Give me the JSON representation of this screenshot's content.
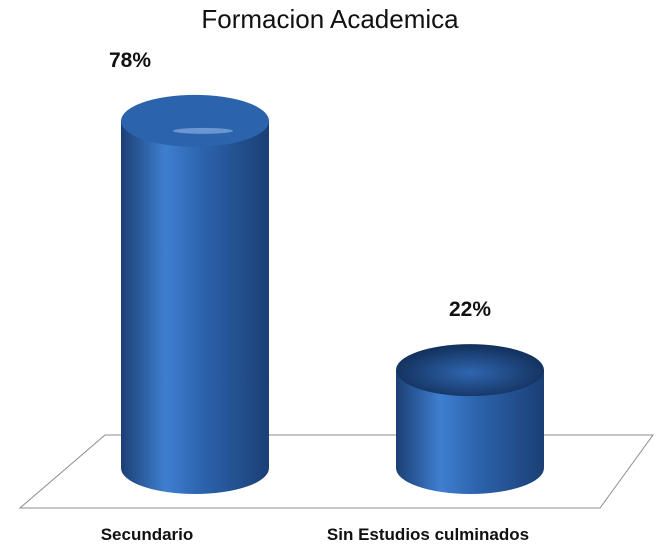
{
  "chart_data": {
    "type": "bar",
    "title": "Formacion Academica",
    "categories": [
      "Secundario",
      "Sin Estudios culminados"
    ],
    "values": [
      78,
      22
    ],
    "value_labels": [
      "78%",
      "22%"
    ],
    "unit": "%",
    "ylim": [
      0,
      100
    ],
    "grid": false,
    "legend": "none",
    "style": "3d-cylinder",
    "colors": {
      "bar_light": "#3f7fd0",
      "bar_mid": "#2c63ad",
      "bar_dark": "#1b3f75",
      "bar_top": "#0f2a52",
      "floor_stroke": "#8c8c8c"
    }
  }
}
